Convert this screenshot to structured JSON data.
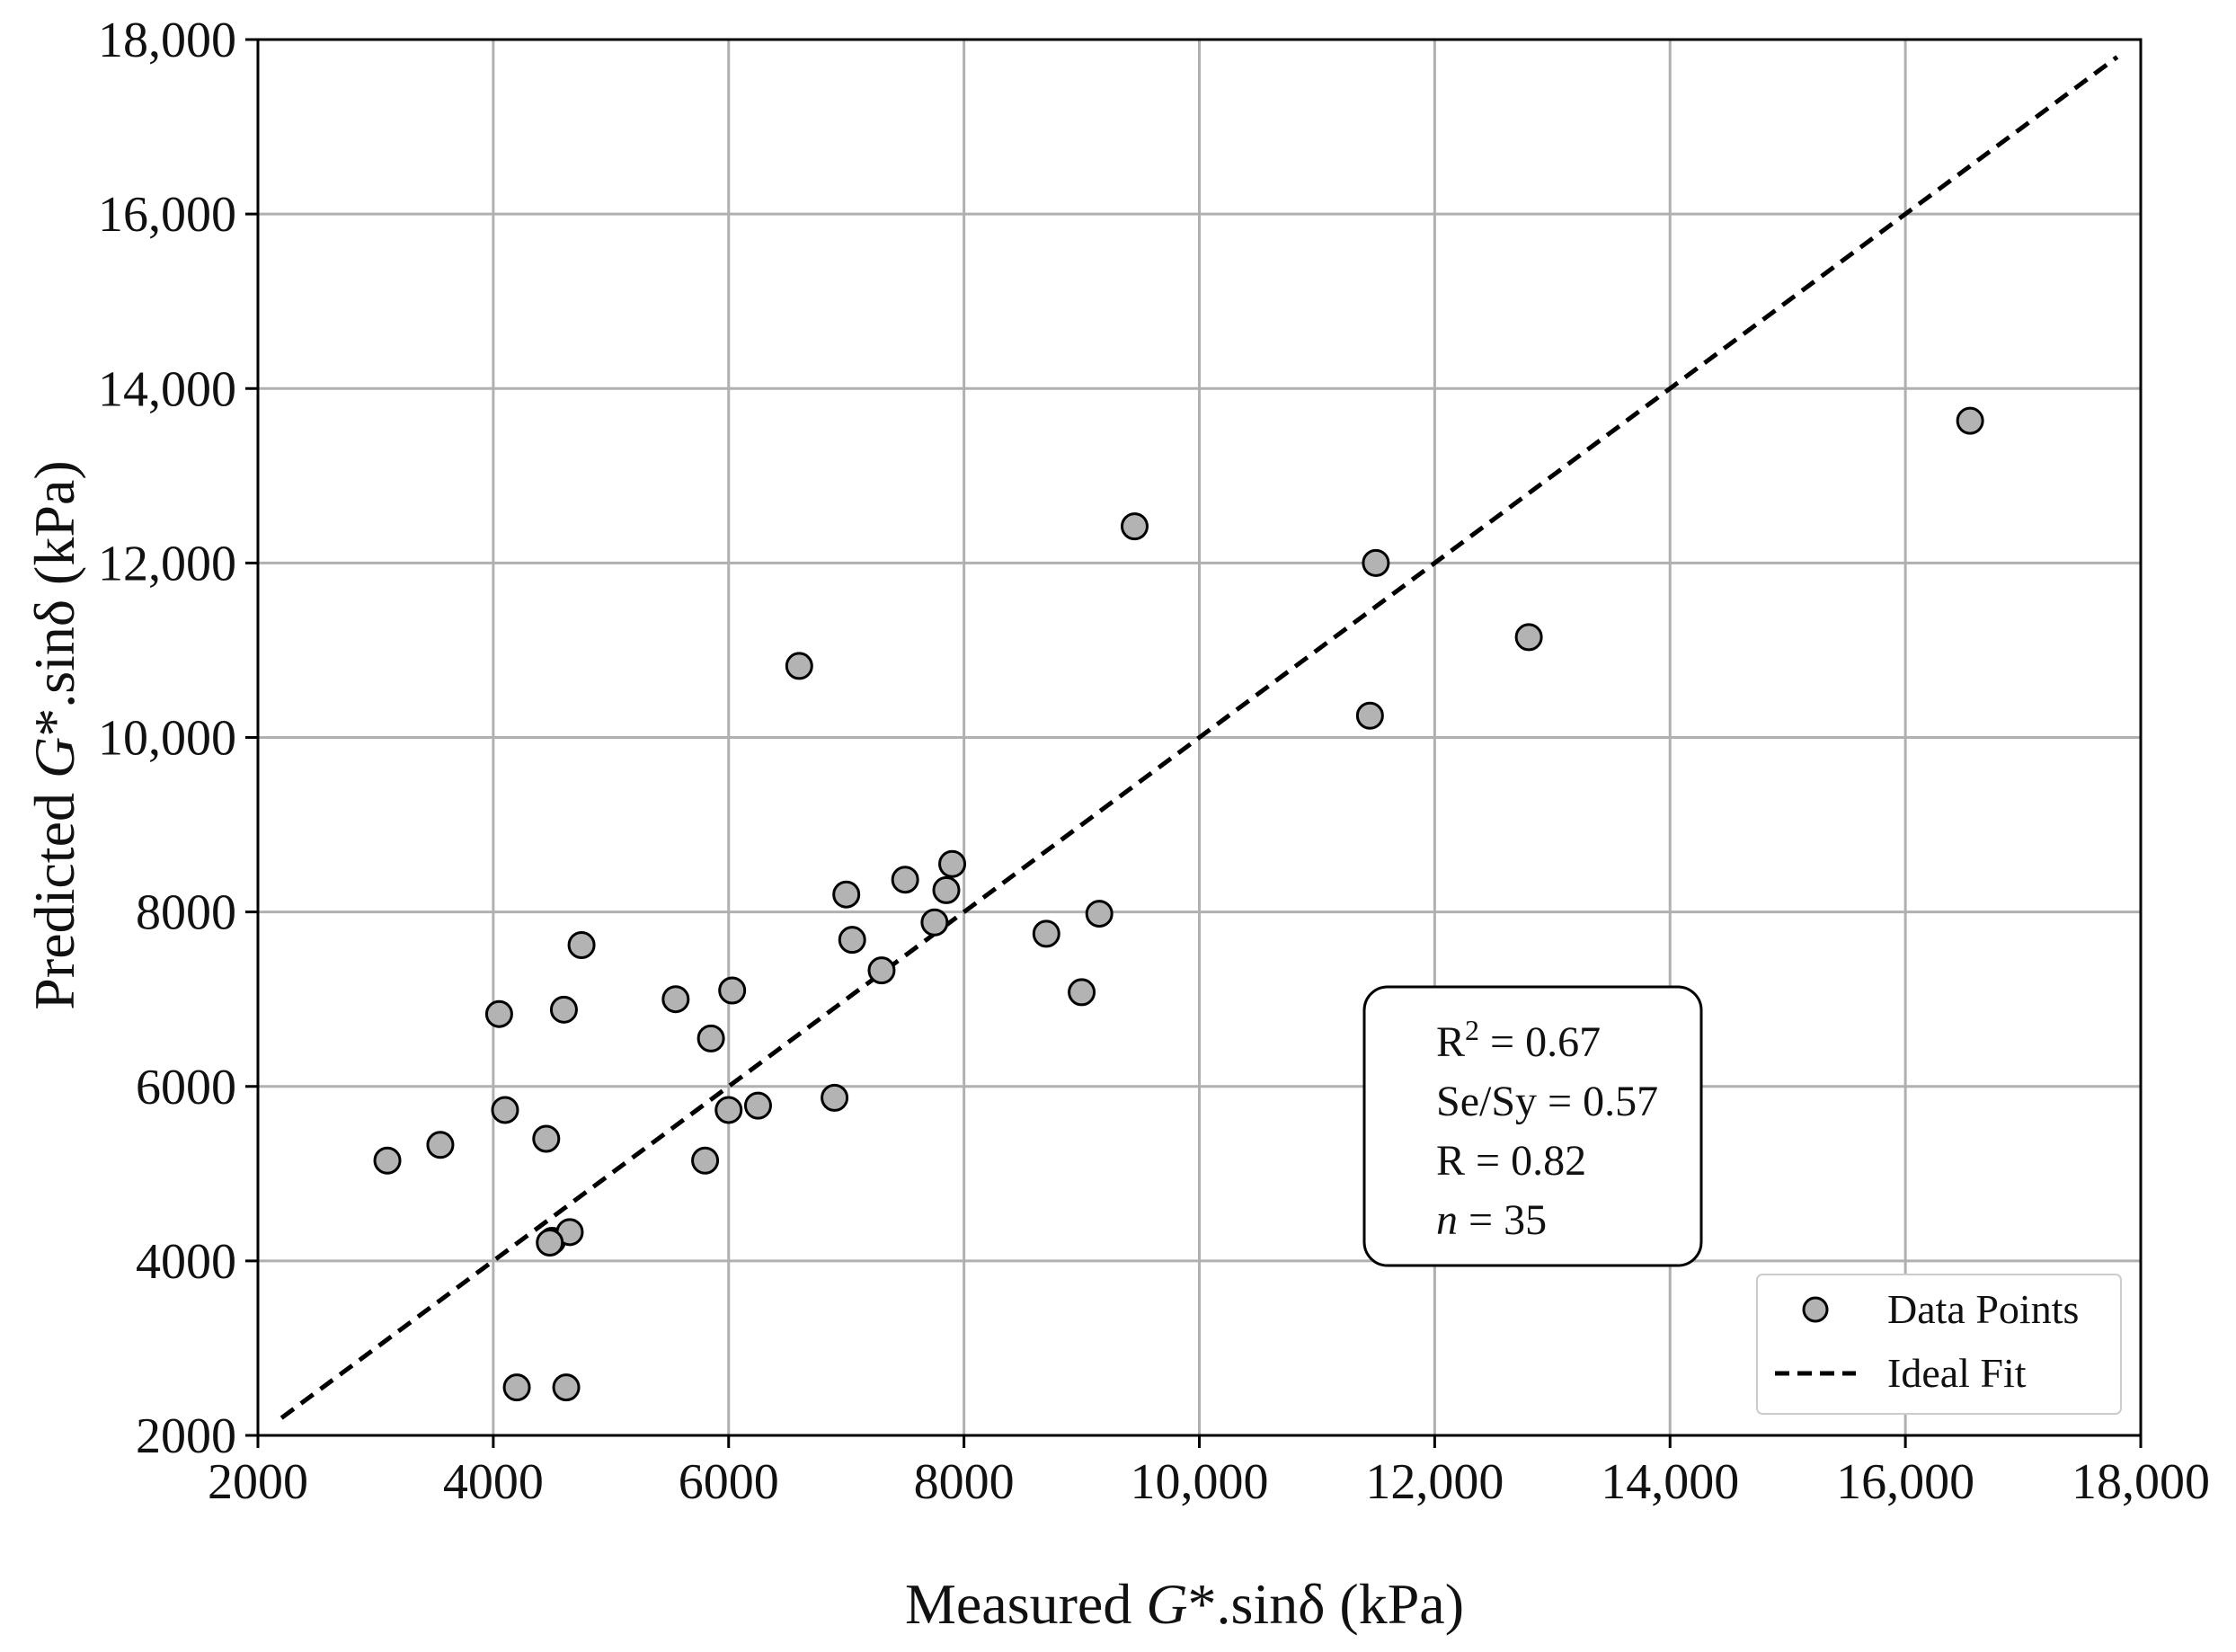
{
  "chart_data": {
    "type": "scatter",
    "xlabel": {
      "prefix": "Measured ",
      "italic": "G",
      "suffix": "*.sinδ (kPa)"
    },
    "ylabel": {
      "prefix": "Predicted ",
      "italic": "G",
      "suffix": "*.sinδ (kPa)"
    },
    "xlim": [
      2000,
      18000
    ],
    "ylim": [
      2000,
      18000
    ],
    "xticks": [
      2000,
      4000,
      6000,
      8000,
      10000,
      12000,
      14000,
      16000,
      18000
    ],
    "yticks": [
      2000,
      4000,
      6000,
      8000,
      10000,
      12000,
      14000,
      16000,
      18000
    ],
    "xtick_labels": [
      "2000",
      "4000",
      "6000",
      "8000",
      "10,000",
      "12,000",
      "14,000",
      "16,000",
      "18,000"
    ],
    "ytick_labels": [
      "2000",
      "4000",
      "6000",
      "8000",
      "10,000",
      "12,000",
      "14,000",
      "16,000",
      "18,000"
    ],
    "grid": true,
    "series": [
      {
        "name": "Data Points",
        "marker": "circle",
        "color": "#b3b3b3",
        "edge_color": "#000000",
        "points": [
          [
            3100,
            5150
          ],
          [
            3550,
            5330
          ],
          [
            4050,
            6830
          ],
          [
            4100,
            5730
          ],
          [
            4200,
            2550
          ],
          [
            4450,
            5400
          ],
          [
            4500,
            4230
          ],
          [
            4600,
            6880
          ],
          [
            4620,
            2550
          ],
          [
            4650,
            4330
          ],
          [
            4750,
            7620
          ],
          [
            5550,
            7000
          ],
          [
            5800,
            5150
          ],
          [
            5850,
            6550
          ],
          [
            6000,
            5730
          ],
          [
            6030,
            7100
          ],
          [
            6250,
            5780
          ],
          [
            6600,
            10820
          ],
          [
            6900,
            5870
          ],
          [
            7000,
            8200
          ],
          [
            7050,
            7680
          ],
          [
            7300,
            7330
          ],
          [
            7500,
            8370
          ],
          [
            7750,
            7880
          ],
          [
            7850,
            8250
          ],
          [
            7900,
            8550
          ],
          [
            8700,
            7750
          ],
          [
            9000,
            7080
          ],
          [
            9150,
            7980
          ],
          [
            9450,
            12420
          ],
          [
            11450,
            10250
          ],
          [
            11500,
            12000
          ],
          [
            12800,
            11150
          ],
          [
            16550,
            13630
          ],
          [
            4480,
            4210
          ]
        ]
      },
      {
        "name": "Ideal Fit",
        "style": "dashed",
        "color": "#000000",
        "x": [
          2200,
          17800
        ],
        "y": [
          2200,
          17800
        ]
      }
    ],
    "legend": {
      "position": "bottom-right",
      "entries": [
        "Data Points",
        "Ideal Fit"
      ]
    },
    "annotation": {
      "r2_base": "R",
      "r2_sup": "2",
      "r2_value": " = 0.67",
      "sesy": "Se/Sy = 0.57",
      "r": "R = 0.82",
      "n_symbol": "n",
      "n_value": " = 35"
    }
  }
}
